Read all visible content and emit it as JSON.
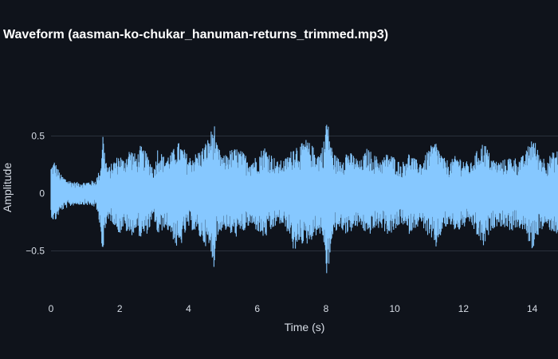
{
  "chart_data": {
    "type": "line",
    "title": "Waveform (aasman-ko-chukar_hanuman-returns_trimmed.mp3)",
    "xlabel": "Time (s)",
    "ylabel": "Amplitude",
    "xlim": [
      0,
      14.75
    ],
    "ylim": [
      -0.92,
      0.99
    ],
    "x_ticks": [
      0,
      2,
      4,
      6,
      8,
      10,
      12,
      14
    ],
    "x_tick_labels": [
      "0",
      "2",
      "4",
      "6",
      "8",
      "10",
      "12",
      "14"
    ],
    "y_ticks": [
      0.5,
      0,
      -0.5
    ],
    "y_tick_labels": [
      "0.5",
      "0",
      "−0.5"
    ],
    "grid": true,
    "colors": {
      "background": "#0f131b",
      "waveform": "#86c8ff",
      "grid": "#2a313c",
      "text": "#d7dde6"
    },
    "series": [
      {
        "x": [
          0.0,
          0.1,
          0.2,
          0.3,
          0.5,
          0.7,
          1.0,
          1.3,
          1.45,
          1.5,
          1.55,
          1.65,
          1.8,
          2.0,
          2.1,
          2.3,
          2.5,
          2.6,
          2.8,
          3.0,
          3.1,
          3.3,
          3.5,
          3.7,
          3.9,
          4.0,
          4.2,
          4.4,
          4.6,
          4.75,
          4.8,
          5.0,
          5.2,
          5.4,
          5.6,
          5.8,
          6.0,
          6.2,
          6.4,
          6.6,
          6.8,
          7.0,
          7.1,
          7.2,
          7.4,
          7.6,
          7.8,
          7.98,
          8.0,
          8.2,
          8.4,
          8.6,
          8.8,
          9.0,
          9.2,
          9.4,
          9.6,
          9.8,
          10.0,
          10.2,
          10.4,
          10.6,
          10.8,
          11.0,
          11.2,
          11.4,
          11.6,
          11.8,
          12.0,
          12.2,
          12.4,
          12.6,
          12.8,
          13.0,
          13.2,
          13.4,
          13.6,
          13.8,
          14.0,
          14.2,
          14.4,
          14.6,
          14.75
        ],
        "max": [
          0.24,
          0.29,
          0.22,
          0.16,
          0.12,
          0.1,
          0.1,
          0.12,
          0.24,
          0.58,
          0.4,
          0.22,
          0.28,
          0.35,
          0.3,
          0.4,
          0.33,
          0.42,
          0.35,
          0.22,
          0.4,
          0.32,
          0.36,
          0.45,
          0.38,
          0.32,
          0.35,
          0.4,
          0.5,
          0.63,
          0.45,
          0.32,
          0.38,
          0.4,
          0.36,
          0.3,
          0.33,
          0.42,
          0.35,
          0.28,
          0.3,
          0.38,
          0.46,
          0.4,
          0.48,
          0.42,
          0.35,
          0.5,
          0.72,
          0.36,
          0.3,
          0.38,
          0.34,
          0.28,
          0.4,
          0.34,
          0.3,
          0.36,
          0.32,
          0.26,
          0.36,
          0.3,
          0.28,
          0.4,
          0.46,
          0.32,
          0.28,
          0.34,
          0.3,
          0.26,
          0.38,
          0.46,
          0.32,
          0.28,
          0.3,
          0.33,
          0.3,
          0.35,
          0.52,
          0.36,
          0.3,
          0.36,
          0.38
        ],
        "min": [
          -0.2,
          -0.26,
          -0.2,
          -0.15,
          -0.12,
          -0.1,
          -0.1,
          -0.12,
          -0.3,
          -0.6,
          -0.42,
          -0.22,
          -0.26,
          -0.36,
          -0.3,
          -0.38,
          -0.32,
          -0.4,
          -0.35,
          -0.22,
          -0.38,
          -0.3,
          -0.36,
          -0.52,
          -0.36,
          -0.3,
          -0.34,
          -0.42,
          -0.5,
          -0.65,
          -0.42,
          -0.3,
          -0.36,
          -0.38,
          -0.34,
          -0.28,
          -0.33,
          -0.4,
          -0.34,
          -0.26,
          -0.3,
          -0.4,
          -0.6,
          -0.42,
          -0.46,
          -0.4,
          -0.34,
          -0.48,
          -0.8,
          -0.38,
          -0.3,
          -0.36,
          -0.32,
          -0.28,
          -0.38,
          -0.32,
          -0.3,
          -0.36,
          -0.34,
          -0.26,
          -0.36,
          -0.3,
          -0.28,
          -0.4,
          -0.48,
          -0.32,
          -0.28,
          -0.34,
          -0.3,
          -0.26,
          -0.38,
          -0.48,
          -0.32,
          -0.28,
          -0.3,
          -0.33,
          -0.3,
          -0.35,
          -0.5,
          -0.34,
          -0.3,
          -0.34,
          -0.36
        ]
      }
    ]
  }
}
